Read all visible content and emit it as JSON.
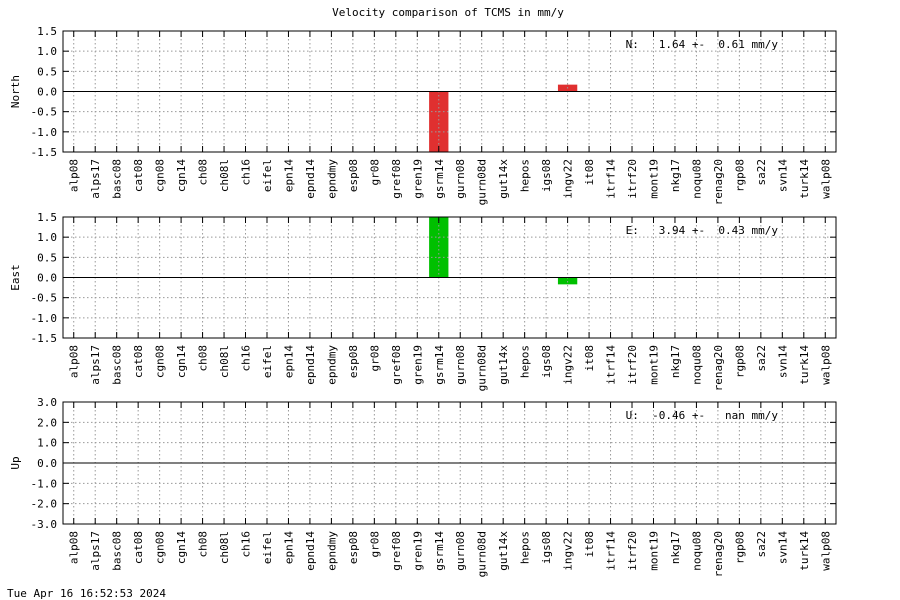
{
  "title": "Velocity comparison of TCMS in mm/y",
  "timestamp": "Tue Apr 16 16:52:53 2024",
  "chart_data": [
    {
      "type": "bar",
      "ylabel": "North",
      "annotation": "N:   1.64 +-  0.61 mm/y",
      "color": "#e03030",
      "grid": true,
      "categories": [
        "alp08",
        "alps17",
        "basc08",
        "cat08",
        "cgn08",
        "cgn14",
        "ch08",
        "ch08l",
        "ch16",
        "eifel",
        "epn14",
        "epnd14",
        "epndmy",
        "esp08",
        "gr08",
        "gref08",
        "gren19",
        "gsrm14",
        "gurn08",
        "gurn08d",
        "gut14x",
        "hepos",
        "igs08",
        "ingv22",
        "it08",
        "itrf14",
        "itrf20",
        "mont19",
        "nkg17",
        "noqu08",
        "renag20",
        "rgp08",
        "sa22",
        "svn14",
        "turk14",
        "walp08"
      ],
      "values": [
        0,
        0,
        0,
        0,
        0,
        0,
        0,
        0,
        0,
        0,
        0,
        0,
        0,
        0,
        0,
        0,
        0,
        -1.5,
        0,
        0,
        0,
        0,
        0,
        0.17,
        0,
        0,
        0,
        0,
        0,
        0,
        0,
        0,
        0,
        0,
        0,
        0
      ],
      "ylim": [
        -1.5,
        1.5
      ],
      "yticks": [
        -1.5,
        {
          "value": -1,
          "label": "-1.0"
        },
        -0.5,
        {
          "value": 0,
          "label": "0.0"
        },
        0.5,
        {
          "value": 1,
          "label": "1.0"
        },
        1.5
      ]
    },
    {
      "type": "bar",
      "ylabel": "East",
      "annotation": "E:   3.94 +-  0.43 mm/y",
      "color": "#00c000",
      "grid": true,
      "categories": [
        "alp08",
        "alps17",
        "basc08",
        "cat08",
        "cgn08",
        "cgn14",
        "ch08",
        "ch08l",
        "ch16",
        "eifel",
        "epn14",
        "epnd14",
        "epndmy",
        "esp08",
        "gr08",
        "gref08",
        "gren19",
        "gsrm14",
        "gurn08",
        "gurn08d",
        "gut14x",
        "hepos",
        "igs08",
        "ingv22",
        "it08",
        "itrf14",
        "itrf20",
        "mont19",
        "nkg17",
        "noqu08",
        "renag20",
        "rgp08",
        "sa22",
        "svn14",
        "turk14",
        "walp08"
      ],
      "values": [
        0,
        0,
        0,
        0,
        0,
        0,
        0,
        0,
        0,
        0,
        0,
        0,
        0,
        0,
        0,
        0,
        0,
        1.5,
        0,
        0,
        0,
        0,
        0,
        -0.17,
        0,
        0,
        0,
        0,
        0,
        0,
        0,
        0,
        0,
        0,
        0,
        0
      ],
      "ylim": [
        -1.5,
        1.5
      ],
      "yticks": [
        -1.5,
        {
          "value": -1,
          "label": "-1.0"
        },
        -0.5,
        {
          "value": 0,
          "label": "0.0"
        },
        0.5,
        {
          "value": 1,
          "label": "1.0"
        },
        1.5
      ]
    },
    {
      "type": "bar",
      "ylabel": "Up",
      "annotation": "U:  -0.46 +-   nan mm/y",
      "color": "#3050e0",
      "grid": true,
      "categories": [
        "alp08",
        "alps17",
        "basc08",
        "cat08",
        "cgn08",
        "cgn14",
        "ch08",
        "ch08l",
        "ch16",
        "eifel",
        "epn14",
        "epnd14",
        "epndmy",
        "esp08",
        "gr08",
        "gref08",
        "gren19",
        "gsrm14",
        "gurn08",
        "gurn08d",
        "gut14x",
        "hepos",
        "igs08",
        "ingv22",
        "it08",
        "itrf14",
        "itrf20",
        "mont19",
        "nkg17",
        "noqu08",
        "renag20",
        "rgp08",
        "sa22",
        "svn14",
        "turk14",
        "walp08"
      ],
      "values": [
        0,
        0,
        0,
        0,
        0,
        0,
        0,
        0,
        0,
        0,
        0,
        0,
        0,
        0,
        0,
        0,
        0,
        0,
        0,
        0,
        0,
        0,
        0,
        0,
        0,
        0,
        0,
        0,
        0,
        0,
        0,
        0,
        0,
        0,
        0,
        0
      ],
      "ylim": [
        -3,
        3
      ],
      "yticks": [
        {
          "value": -3,
          "label": "-3.0"
        },
        {
          "value": -2,
          "label": "-2.0"
        },
        {
          "value": -1,
          "label": "-1.0"
        },
        {
          "value": 0,
          "label": "0.0"
        },
        {
          "value": 1,
          "label": "1.0"
        },
        {
          "value": 2,
          "label": "2.0"
        },
        {
          "value": 3,
          "label": "3.0"
        }
      ]
    }
  ]
}
